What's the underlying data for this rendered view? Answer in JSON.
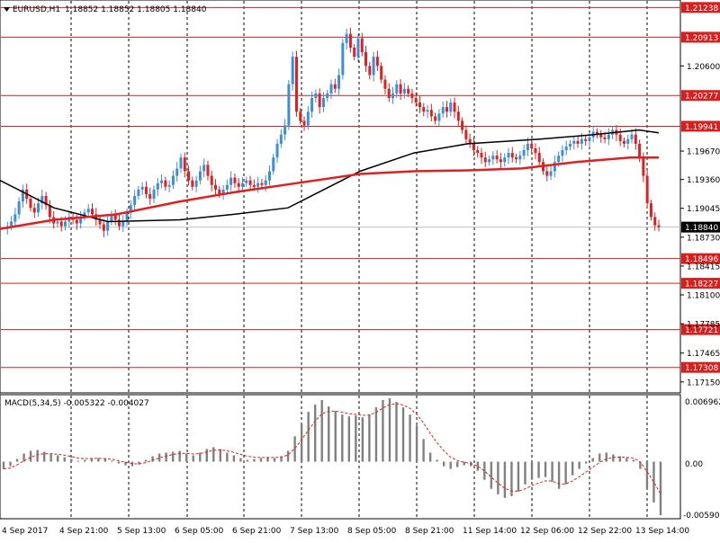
{
  "header": {
    "symbol": "EURUSD,H1",
    "ohlc": "1.18852 1.18852 1.18805 1.18840",
    "triangle_icon": "triangle-down-icon"
  },
  "macd": {
    "label": "MACD(5,34,5) -0.005322 -0.004027",
    "scale_top": "0.006962",
    "scale_zero": "0.00",
    "scale_bottom": "-0.005907"
  },
  "colors": {
    "bull": "#3b8ede",
    "bear": "#e02020",
    "resistance_line": "#d02020",
    "ma_slow": "#000000",
    "ma_fast": "#e02020",
    "hist": "#808080",
    "signal": "#e02020",
    "label_red": "#d62020",
    "label_black": "#000000"
  },
  "chart_data": {
    "type": "candlestick",
    "price_ticks": [
      "1.20600",
      "1.19670",
      "1.19360",
      "1.19045",
      "1.18730",
      "1.18415",
      "1.18100",
      "1.17785",
      "1.17465",
      "1.17150"
    ],
    "level_labels": [
      {
        "value": 1.21238,
        "text": "1.21238"
      },
      {
        "value": 1.20913,
        "text": "1.20913"
      },
      {
        "value": 1.20277,
        "text": "1.20277"
      },
      {
        "value": 1.19941,
        "text": "1.19941"
      },
      {
        "value": 1.18496,
        "text": "1.18496"
      },
      {
        "value": 1.18227,
        "text": "1.18227"
      },
      {
        "value": 1.17721,
        "text": "1.17721"
      },
      {
        "value": 1.17308,
        "text": "1.17308"
      }
    ],
    "current_price": {
      "value": 1.1884,
      "text": "1.18840"
    },
    "time_labels": [
      "4 Sep 2017",
      "4 Sep 21:00",
      "5 Sep 13:00",
      "6 Sep 05:00",
      "6 Sep 21:00",
      "7 Sep 13:00",
      "8 Sep 05:00",
      "8 Sep 21:00",
      "11 Sep 14:00",
      "12 Sep 06:00",
      "12 Sep 22:00",
      "13 Sep 14:00"
    ],
    "price_path": [
      1.1882,
      1.1885,
      1.189,
      1.1898,
      1.1912,
      1.1925,
      1.1915,
      1.1905,
      1.19,
      1.191,
      1.1918,
      1.1908,
      1.1895,
      1.1888,
      1.189,
      1.1885,
      1.189,
      1.1895,
      1.1892,
      1.1888,
      1.1895,
      1.19,
      1.1904,
      1.1898,
      1.1892,
      1.1887,
      1.188,
      1.189,
      1.1898,
      1.1892,
      1.1885,
      1.189,
      1.19,
      1.1908,
      1.1918,
      1.1925,
      1.1928,
      1.192,
      1.1915,
      1.1925,
      1.1932,
      1.1935,
      1.1928,
      1.193,
      1.194,
      1.1948,
      1.196,
      1.1945,
      1.1935,
      1.1928,
      1.1935,
      1.1945,
      1.1952,
      1.194,
      1.193,
      1.1925,
      1.192,
      1.1925,
      1.193,
      1.1938,
      1.1932,
      1.1928,
      1.1932,
      1.1935,
      1.193,
      1.1928,
      1.1932,
      1.193,
      1.1935,
      1.1945,
      1.196,
      1.1975,
      1.1985,
      1.1995,
      1.204,
      1.207,
      1.201,
      1.2,
      1.1995,
      1.201,
      1.2025,
      1.203,
      1.2015,
      1.2025,
      1.203,
      1.204,
      1.2035,
      1.205,
      1.2085,
      1.2095,
      1.208,
      1.207,
      1.209,
      1.2075,
      1.206,
      1.205,
      1.207,
      1.206,
      1.2045,
      1.2035,
      1.2025,
      1.203,
      1.204,
      1.203,
      1.2035,
      1.203,
      1.2025,
      1.202,
      1.2015,
      1.201,
      1.2012,
      1.2005,
      1.2,
      1.2008,
      1.2015,
      1.201,
      1.202,
      1.201,
      1.2,
      1.199,
      1.198,
      1.1975,
      1.1968,
      1.1965,
      1.196,
      1.1955,
      1.1958,
      1.1962,
      1.1958,
      1.1955,
      1.196,
      1.1965,
      1.196,
      1.1958,
      1.1962,
      1.1968,
      1.1975,
      1.197,
      1.1965,
      1.1955,
      1.1945,
      1.194,
      1.1945,
      1.1955,
      1.1962,
      1.1968,
      1.1972,
      1.1975,
      1.1978,
      1.1975,
      1.198,
      1.1978,
      1.1982,
      1.1988,
      1.1985,
      1.1982,
      1.198,
      1.1985,
      1.199,
      1.1985,
      1.1978,
      1.1975,
      1.198,
      1.1985,
      1.1975,
      1.196,
      1.194,
      1.191,
      1.1895,
      1.1886,
      1.1884
    ],
    "ma_slow_points": [
      [
        0,
        1.1935
      ],
      [
        60,
        1.1905
      ],
      [
        120,
        1.189
      ],
      [
        200,
        1.1892
      ],
      [
        260,
        1.1898
      ],
      [
        320,
        1.1905
      ],
      [
        360,
        1.1925
      ],
      [
        400,
        1.1945
      ],
      [
        460,
        1.1965
      ],
      [
        520,
        1.1975
      ],
      [
        600,
        1.198
      ],
      [
        660,
        1.1985
      ],
      [
        710,
        1.199
      ],
      [
        732,
        1.1987
      ]
    ],
    "ma_fast_points": [
      [
        0,
        1.1882
      ],
      [
        60,
        1.1892
      ],
      [
        130,
        1.1898
      ],
      [
        200,
        1.1912
      ],
      [
        260,
        1.1922
      ],
      [
        330,
        1.1932
      ],
      [
        400,
        1.1942
      ],
      [
        460,
        1.1945
      ],
      [
        520,
        1.1946
      ],
      [
        580,
        1.1948
      ],
      [
        640,
        1.1955
      ],
      [
        700,
        1.196
      ],
      [
        732,
        1.196
      ]
    ],
    "macd_hist": [
      -0.0008,
      -0.0005,
      0.0003,
      0.0009,
      0.0012,
      0.0013,
      0.0011,
      0.0009,
      0.0007,
      0.0005,
      0.0003,
      0.0001,
      0.0002,
      0.0004,
      0.0004,
      0.0003,
      0.0001,
      -0.0002,
      -0.0004,
      -0.0005,
      -0.0003,
      0.0002,
      0.0006,
      0.0009,
      0.001,
      0.0011,
      0.0012,
      0.0009,
      0.0007,
      0.001,
      0.0014,
      0.0016,
      0.0014,
      0.001,
      0.0007,
      0.0004,
      0.0002,
      0.0003,
      0.0004,
      0.0005,
      0.0004,
      0.0006,
      0.0012,
      0.0028,
      0.0042,
      0.0055,
      0.0063,
      0.0068,
      0.0061,
      0.0056,
      0.0052,
      0.005,
      0.0051,
      0.0049,
      0.0052,
      0.006,
      0.0068,
      0.007,
      0.0066,
      0.006,
      0.0052,
      0.004,
      0.0025,
      0.001,
      0.0002,
      -0.0005,
      -0.0008,
      -0.0006,
      -0.0004,
      -0.0005,
      -0.001,
      -0.002,
      -0.003,
      -0.0036,
      -0.004,
      -0.0038,
      -0.0033,
      -0.0025,
      -0.002,
      -0.0018,
      -0.0017,
      -0.0022,
      -0.003,
      -0.0025,
      -0.0015,
      -0.0008,
      -0.0002,
      0.0004,
      0.0009,
      0.001,
      0.0008,
      0.0006,
      0.0004,
      0.0002,
      -0.0008,
      -0.003,
      -0.0045,
      -0.0059
    ],
    "ylim": [
      1.1704,
      1.213
    ],
    "macd_ylim": [
      -0.0061,
      0.0072
    ]
  }
}
